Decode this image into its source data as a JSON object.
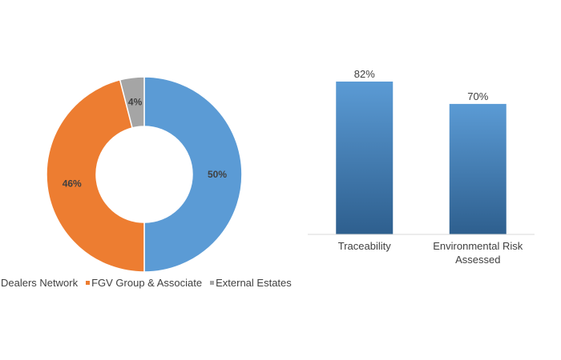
{
  "chart_data": [
    {
      "type": "pie",
      "title": "",
      "categories": [
        "Dealers Network",
        "FGV Group & Associate",
        "External Estates"
      ],
      "values": [
        50,
        46,
        4
      ],
      "data_labels": [
        "50%",
        "46%",
        "4%"
      ],
      "colors": [
        "#5b9bd5",
        "#ed7d31",
        "#a5a5a5"
      ],
      "legend": "bottom",
      "donut": true
    },
    {
      "type": "bar",
      "title": "",
      "categories": [
        "Traceability",
        "Environmental Risk Assessed"
      ],
      "category_lines": [
        [
          "Traceability"
        ],
        [
          "Environmental Risk",
          "Assessed"
        ]
      ],
      "values": [
        82,
        70
      ],
      "data_labels": [
        "82%",
        "70%"
      ],
      "ylim": [
        0,
        100
      ],
      "xlabel": "",
      "ylabel": "",
      "grid": false,
      "colors": {
        "top": "#5b9bd5",
        "bottom": "#2e5f8e"
      }
    }
  ]
}
